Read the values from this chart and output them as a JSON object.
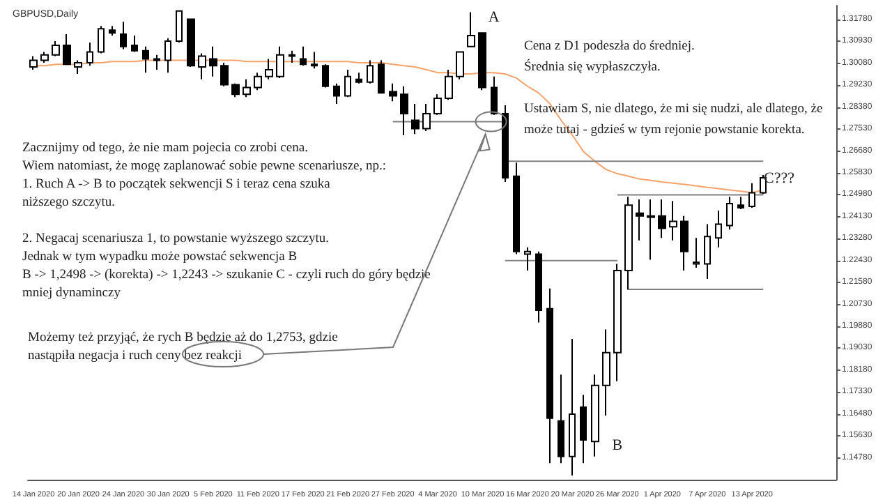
{
  "chart_data": {
    "type": "candlestick",
    "title": "GBPUSD,Daily",
    "categories": [
      "14 Jan 2020",
      null,
      null,
      null,
      "20 Jan 2020",
      null,
      null,
      null,
      "24 Jan 2020",
      null,
      null,
      null,
      "30 Jan 2020",
      null,
      null,
      null,
      "5 Feb 2020",
      null,
      null,
      null,
      "11 Feb 2020",
      null,
      null,
      null,
      "17 Feb 2020",
      null,
      null,
      null,
      "21 Feb 2020",
      null,
      null,
      null,
      "27 Feb 2020",
      null,
      null,
      null,
      "4 Mar 2020",
      null,
      null,
      null,
      "10 Mar 2020",
      null,
      null,
      null,
      "16 Mar 2020",
      null,
      null,
      null,
      "20 Mar 2020",
      null,
      null,
      null,
      "26 Mar 2020",
      null,
      null,
      null,
      "1 Apr 2020",
      null,
      null,
      null,
      "7 Apr 2020",
      null,
      null,
      null,
      "13 Apr 2020",
      null
    ],
    "series": [
      {
        "color": "#000000",
        "ohlc": [
          [
            1.2994,
            1.3036,
            1.2983,
            1.302
          ],
          [
            1.302,
            1.3052,
            1.301,
            1.3041
          ],
          [
            1.3041,
            1.3094,
            1.3036,
            1.3078
          ],
          [
            1.3078,
            1.3121,
            1.3004,
            1.3004
          ],
          [
            1.2994,
            1.302,
            1.2967,
            1.301
          ],
          [
            1.301,
            1.3089,
            1.2999,
            1.3052
          ],
          [
            1.3052,
            1.3153,
            1.3047,
            1.3142
          ],
          [
            1.3137,
            1.3153,
            1.3116,
            1.3126
          ],
          [
            1.3121,
            1.3169,
            1.3063,
            1.3073
          ],
          [
            1.3078,
            1.3116,
            1.3052,
            1.3057
          ],
          [
            1.3057,
            1.3073,
            1.2972,
            1.3025
          ],
          [
            1.3025,
            1.3041,
            1.2983,
            1.302
          ],
          [
            1.302,
            1.3105,
            1.2972,
            1.3094
          ],
          [
            1.3094,
            1.3213,
            1.3089,
            1.3211
          ],
          [
            1.3179,
            1.318,
            1.2994,
            1.2999
          ],
          [
            1.2994,
            1.3047,
            1.2946,
            1.3036
          ],
          [
            1.3025,
            1.3073,
            1.2957,
            1.2999
          ],
          [
            1.2999,
            1.301,
            1.2919,
            1.2925
          ],
          [
            1.2925,
            1.293,
            1.2877,
            1.2888
          ],
          [
            1.2888,
            1.2946,
            1.2877,
            1.2914
          ],
          [
            1.2914,
            1.2972,
            1.2904,
            1.2957
          ],
          [
            1.2957,
            1.3025,
            1.2946,
            1.2983
          ],
          [
            1.2957,
            1.3073,
            1.2951,
            1.3041
          ],
          [
            1.3036,
            1.3057,
            1.301,
            1.3041
          ],
          [
            1.3025,
            1.3073,
            1.2999,
            1.3004
          ],
          [
            1.3004,
            1.3052,
            1.2988,
            1.2999
          ],
          [
            1.2999,
            1.3004,
            1.2914,
            1.2919
          ],
          [
            1.2919,
            1.293,
            1.2851,
            1.2882
          ],
          [
            1.2882,
            1.2983,
            1.2877,
            1.2957
          ],
          [
            1.2946,
            1.2972,
            1.293,
            1.2935
          ],
          [
            1.2935,
            1.302,
            1.293,
            1.2999
          ],
          [
            1.3004,
            1.302,
            1.2893,
            1.2893
          ],
          [
            1.2898,
            1.293,
            1.2861,
            1.2882
          ],
          [
            1.2888,
            1.2919,
            1.2729,
            1.2813
          ],
          [
            1.2787,
            1.2851,
            1.2734,
            1.2755
          ],
          [
            1.2755,
            1.2851,
            1.2745,
            1.2813
          ],
          [
            1.2813,
            1.2888,
            1.2808,
            1.2872
          ],
          [
            1.2872,
            1.2983,
            1.2866,
            1.2957
          ],
          [
            1.2957,
            1.3052,
            1.2946,
            1.3052
          ],
          [
            1.3073,
            1.3206,
            1.3073,
            1.3116
          ],
          [
            1.3126,
            1.3127,
            1.2904,
            1.2914
          ],
          [
            1.2914,
            1.2957,
            1.2808,
            1.2813
          ],
          [
            1.2813,
            1.2845,
            1.2548,
            1.2564
          ],
          [
            1.257,
            1.2623,
            1.2268,
            1.2278
          ],
          [
            1.2268,
            1.2294,
            1.2204,
            1.2278
          ],
          [
            1.2268,
            1.2278,
            1.2003,
            1.205
          ],
          [
            1.2056,
            1.2135,
            1.1457,
            1.1632
          ],
          [
            1.1621,
            1.1801,
            1.1457,
            1.1483
          ],
          [
            1.1483,
            1.1939,
            1.1409,
            1.1647
          ],
          [
            1.1674,
            1.1722,
            1.1457,
            1.1547
          ],
          [
            1.1541,
            1.1801,
            1.1483,
            1.1759
          ],
          [
            1.1759,
            1.1976,
            1.1642,
            1.1886
          ],
          [
            1.1886,
            1.223,
            1.1775,
            1.2204
          ],
          [
            1.2204,
            1.249,
            1.213,
            1.2458
          ],
          [
            1.2427,
            1.248,
            1.2321,
            1.2416
          ],
          [
            1.2416,
            1.248,
            1.2246,
            1.2411
          ],
          [
            1.2416,
            1.248,
            1.2331,
            1.2368
          ],
          [
            1.2374,
            1.2474,
            1.2321,
            1.2395
          ],
          [
            1.2395,
            1.2416,
            1.2204,
            1.2278
          ],
          [
            1.223,
            1.2331,
            1.2215,
            1.2236
          ],
          [
            1.223,
            1.2384,
            1.2172,
            1.2336
          ],
          [
            1.2331,
            1.2437,
            1.2294,
            1.2384
          ],
          [
            1.2379,
            1.249,
            1.2363,
            1.2464
          ],
          [
            1.2458,
            1.249,
            1.2442,
            1.2448
          ],
          [
            1.2453,
            1.2543,
            1.2448,
            1.2506
          ],
          [
            1.2506,
            1.2575,
            1.2501,
            1.2564
          ]
        ]
      },
      {
        "type": "line",
        "color": "#f5a26b",
        "values": [
          1.2999,
          1.2999,
          1.3004,
          1.3004,
          1.3004,
          1.301,
          1.301,
          1.3015,
          1.3015,
          1.3015,
          1.302,
          1.302,
          1.302,
          1.302,
          1.302,
          1.302,
          1.302,
          1.302,
          1.302,
          1.3015,
          1.3015,
          1.3015,
          1.3015,
          1.3015,
          1.3015,
          1.3015,
          1.3015,
          1.3015,
          1.3015,
          1.301,
          1.301,
          1.301,
          1.3004,
          1.2999,
          1.2994,
          1.2983,
          1.2972,
          1.2972,
          1.2967,
          1.2967,
          1.2972,
          1.2972,
          1.2967,
          1.2951,
          1.2919,
          1.2893,
          1.2851,
          1.2787,
          1.2729,
          1.2665,
          1.2628,
          1.2596,
          1.258,
          1.257,
          1.2559,
          1.2554,
          1.2548,
          1.2543,
          1.2538,
          1.2533,
          1.2527,
          1.2522,
          1.2517,
          1.2512,
          1.2506,
          1.2517
        ]
      },
      {
        "type": "line",
        "color": "#808080",
        "values": [
          null,
          null,
          null,
          null,
          null,
          null,
          null,
          null,
          null,
          null,
          null,
          null,
          null,
          null,
          null,
          null,
          null,
          null,
          null,
          null,
          null,
          null,
          null,
          null,
          null,
          null,
          null,
          null,
          null,
          null,
          null,
          null,
          1.2782,
          null,
          null,
          null,
          null,
          null,
          null,
          null,
          null,
          null,
          1.2782,
          null,
          null,
          null,
          null,
          null,
          null,
          null,
          null,
          null,
          null,
          null,
          null,
          null,
          null,
          null,
          null,
          null,
          null,
          null,
          null,
          null,
          null,
          null
        ]
      },
      {
        "type": "line",
        "color": "#808080",
        "values": [
          null,
          null,
          null,
          null,
          null,
          null,
          null,
          null,
          null,
          null,
          null,
          null,
          null,
          null,
          null,
          null,
          null,
          null,
          null,
          null,
          null,
          null,
          null,
          null,
          null,
          null,
          null,
          null,
          null,
          null,
          null,
          null,
          null,
          null,
          null,
          null,
          null,
          null,
          null,
          null,
          null,
          null,
          1.2628,
          null,
          null,
          null,
          null,
          null,
          null,
          null,
          null,
          null,
          null,
          null,
          null,
          null,
          null,
          null,
          null,
          null,
          null,
          null,
          null,
          null,
          null,
          1.2628
        ]
      },
      {
        "type": "line",
        "color": "#808080",
        "values": [
          null,
          null,
          null,
          null,
          null,
          null,
          null,
          null,
          null,
          null,
          null,
          null,
          null,
          null,
          null,
          null,
          null,
          null,
          null,
          null,
          null,
          null,
          null,
          null,
          null,
          null,
          null,
          null,
          null,
          null,
          null,
          null,
          null,
          null,
          null,
          null,
          null,
          null,
          null,
          null,
          null,
          null,
          null,
          null,
          null,
          null,
          null,
          null,
          null,
          null,
          null,
          null,
          1.2498,
          null,
          null,
          null,
          null,
          null,
          null,
          null,
          null,
          null,
          null,
          null,
          null,
          1.2498
        ]
      },
      {
        "type": "line",
        "color": "#808080",
        "values": [
          null,
          null,
          null,
          null,
          null,
          null,
          null,
          null,
          null,
          null,
          null,
          null,
          null,
          null,
          null,
          null,
          null,
          null,
          null,
          null,
          null,
          null,
          null,
          null,
          null,
          null,
          null,
          null,
          null,
          null,
          null,
          null,
          null,
          null,
          null,
          null,
          null,
          null,
          null,
          null,
          null,
          null,
          1.2243,
          null,
          null,
          null,
          null,
          null,
          null,
          null,
          null,
          null,
          1.2243,
          null,
          null,
          null,
          null,
          null,
          null,
          null,
          null,
          null,
          null,
          null,
          null,
          null
        ]
      },
      {
        "type": "line",
        "color": "#808080",
        "values": [
          null,
          null,
          null,
          null,
          null,
          null,
          null,
          null,
          null,
          null,
          null,
          null,
          null,
          null,
          null,
          null,
          null,
          null,
          null,
          null,
          null,
          null,
          null,
          null,
          null,
          null,
          null,
          null,
          null,
          null,
          null,
          null,
          null,
          null,
          null,
          null,
          null,
          null,
          null,
          null,
          null,
          null,
          null,
          null,
          null,
          null,
          null,
          null,
          null,
          null,
          null,
          null,
          null,
          1.2131,
          null,
          null,
          null,
          null,
          null,
          null,
          null,
          null,
          null,
          null,
          null,
          1.2131
        ]
      }
    ],
    "ylim": [
      1.1393,
      1.3232
    ],
    "yticks": [
      {
        "value": 1.1478,
        "label": "1.14780"
      },
      {
        "value": 1.1563,
        "label": "1.15630"
      },
      {
        "value": 1.1648,
        "label": "1.16480"
      },
      {
        "value": 1.1733,
        "label": "1.17330"
      },
      {
        "value": 1.1818,
        "label": "1.18180"
      },
      {
        "value": 1.1903,
        "label": "1.19030"
      },
      {
        "value": 1.1988,
        "label": "1.19880"
      },
      {
        "value": 1.2073,
        "label": "1.20730"
      },
      {
        "value": 1.2158,
        "label": "1.21580"
      },
      {
        "value": 1.2243,
        "label": "1.22430"
      },
      {
        "value": 1.2328,
        "label": "1.23280"
      },
      {
        "value": 1.2413,
        "label": "1.24130"
      },
      {
        "value": 1.2498,
        "label": "1.24980"
      },
      {
        "value": 1.2583,
        "label": "1.25830"
      },
      {
        "value": 1.2668,
        "label": "1.26680"
      },
      {
        "value": 1.2753,
        "label": "1.27530"
      },
      {
        "value": 1.2838,
        "label": "1.28380"
      },
      {
        "value": 1.2923,
        "label": "1.29230"
      },
      {
        "value": 1.3008,
        "label": "1.30080"
      },
      {
        "value": 1.3093,
        "label": "1.30930"
      },
      {
        "value": 1.3178,
        "label": "1.31780"
      }
    ],
    "annotations": [
      "A",
      "B",
      "C???",
      "Cena z D1 podeszła do średniej.\nŚrednia się wypłaszczyła.\n\nUstawiam S, nie dlatego, że mi się nudzi, ale dlatego, że\nmoże tutaj - gdzieś w tym rejonie powstanie korekta.",
      "Zacznijmy od tego, że nie mam pojecia co zrobi cena.\nWiem natomiast, że mogę zaplanować sobie pewne scenariusze, np.:\n1. Ruch A -> B to początek sekwencji S i teraz cena szuka\nniższego szczytu.\n\n2. Negacaj scenariusza 1, to powstanie wyższego szczytu.\nJednak w tym wypadku może powstać sekwencja B\nB -> 1,2498 -> (korekta) -> 1,2243 -> szukanie C - czyli ruch do góry będzie\nmniej dynaminczy",
      "Możemy też przyjąć, że rych B będzie aż do 1,2753, gdzie\nnastąpiła negacja i ruch ceny bez reakcji"
    ],
    "grid": false,
    "marker": "none",
    "line_style": "solid"
  }
}
